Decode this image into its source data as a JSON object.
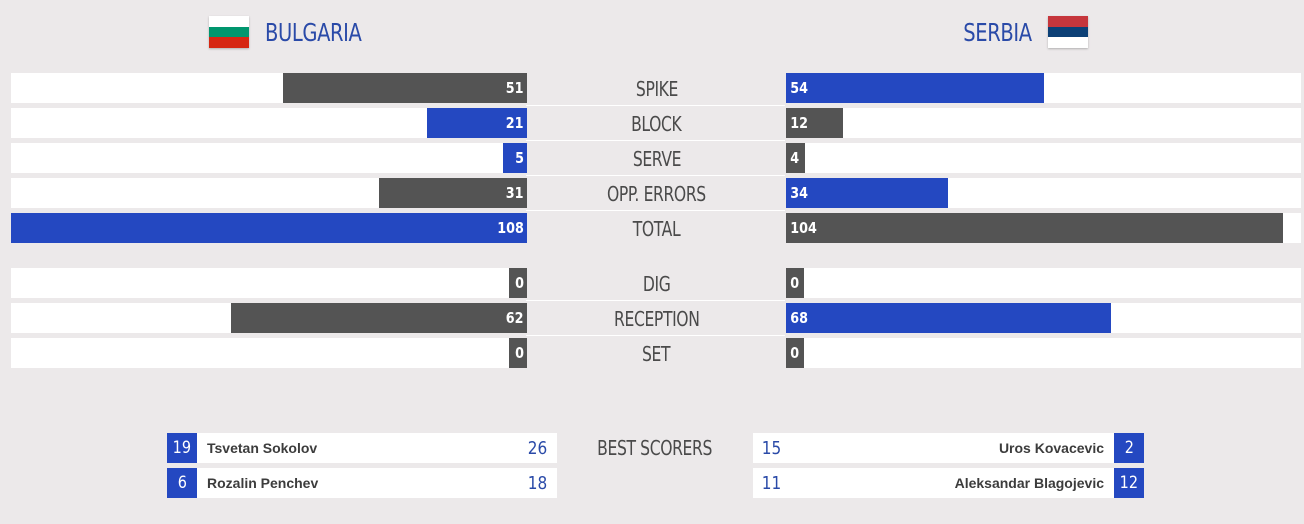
{
  "home": {
    "name": "BULGARIA",
    "flag": [
      "#ffffff",
      "#00966e",
      "#d62612"
    ]
  },
  "away": {
    "name": "SERBIA",
    "flag": [
      "#c6363c",
      "#0c4076",
      "#ffffff"
    ]
  },
  "colors": {
    "blue": "#2448c1",
    "dark": "#545454"
  },
  "scale_max": 108,
  "stats": [
    {
      "label": "SPIKE",
      "home": 51,
      "away": 54
    },
    {
      "label": "BLOCK",
      "home": 21,
      "away": 12
    },
    {
      "label": "SERVE",
      "home": 5,
      "away": 4
    },
    {
      "label": "OPP. ERRORS",
      "home": 31,
      "away": 34
    },
    {
      "label": "TOTAL",
      "home": 108,
      "away": 104
    },
    {
      "label": "DIG",
      "home": 0,
      "away": 0
    },
    {
      "label": "RECEPTION",
      "home": 62,
      "away": 68
    },
    {
      "label": "SET",
      "home": 0,
      "away": 0
    }
  ],
  "best_scorers": {
    "label": "BEST SCORERS",
    "home": [
      {
        "number": "19",
        "name": "Tsvetan Sokolov",
        "points": "26"
      },
      {
        "number": "6",
        "name": "Rozalin Penchev",
        "points": "18"
      }
    ],
    "away": [
      {
        "number": "2",
        "name": "Uros Kovacevic",
        "points": "15"
      },
      {
        "number": "12",
        "name": "Aleksandar Blagojevic",
        "points": "11"
      }
    ]
  }
}
